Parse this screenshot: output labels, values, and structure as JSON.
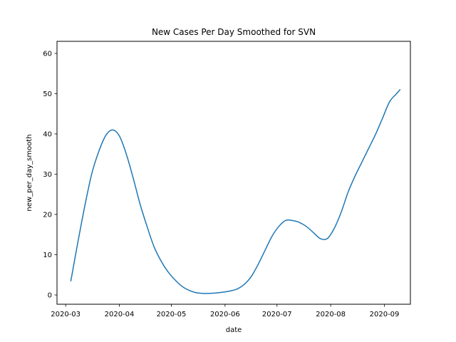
{
  "chart_data": {
    "type": "line",
    "title": "New Cases Per Day Smoothed for SVN",
    "xlabel": "date",
    "ylabel": "new_per_day_smooth",
    "x_tick_labels": [
      "2020-03",
      "2020-04",
      "2020-05",
      "2020-06",
      "2020-07",
      "2020-08",
      "2020-09"
    ],
    "x_tick_dates": [
      "2020-03-01",
      "2020-04-01",
      "2020-05-01",
      "2020-06-01",
      "2020-07-01",
      "2020-08-01",
      "2020-09-01"
    ],
    "y_ticks": [
      0,
      10,
      20,
      30,
      40,
      50,
      60
    ],
    "xlim": [
      "2020-02-25",
      "2020-09-16"
    ],
    "ylim": [
      -2.3,
      63
    ],
    "grid": false,
    "color": "#1f77b4",
    "series": [
      {
        "x": [
          "2020-03-04",
          "2020-03-08",
          "2020-03-12",
          "2020-03-16",
          "2020-03-20",
          "2020-03-24",
          "2020-03-28",
          "2020-04-01",
          "2020-04-05",
          "2020-04-09",
          "2020-04-13",
          "2020-04-17",
          "2020-04-21",
          "2020-04-25",
          "2020-04-29",
          "2020-05-03",
          "2020-05-07",
          "2020-05-11",
          "2020-05-15",
          "2020-05-19",
          "2020-05-23",
          "2020-05-27",
          "2020-05-31",
          "2020-06-04",
          "2020-06-08",
          "2020-06-12",
          "2020-06-16",
          "2020-06-20",
          "2020-06-24",
          "2020-06-28",
          "2020-07-02",
          "2020-07-06",
          "2020-07-10",
          "2020-07-14",
          "2020-07-18",
          "2020-07-22",
          "2020-07-26",
          "2020-07-30",
          "2020-08-03",
          "2020-08-07",
          "2020-08-11",
          "2020-08-15",
          "2020-08-19",
          "2020-08-23",
          "2020-08-27",
          "2020-08-31",
          "2020-09-04",
          "2020-09-08",
          "2020-09-10"
        ],
        "y": [
          3.5,
          13,
          22,
          30,
          35.5,
          39.5,
          41,
          39.5,
          35,
          29,
          22.5,
          17,
          12,
          8.5,
          5.8,
          3.8,
          2.2,
          1.2,
          0.6,
          0.4,
          0.4,
          0.5,
          0.7,
          1.0,
          1.5,
          2.6,
          4.5,
          7.5,
          11,
          14.5,
          17,
          18.5,
          18.5,
          18,
          17,
          15.5,
          14,
          14,
          16.5,
          20.5,
          25.5,
          29.5,
          33,
          36.5,
          40,
          44,
          48,
          50,
          51
        ]
      }
    ]
  }
}
